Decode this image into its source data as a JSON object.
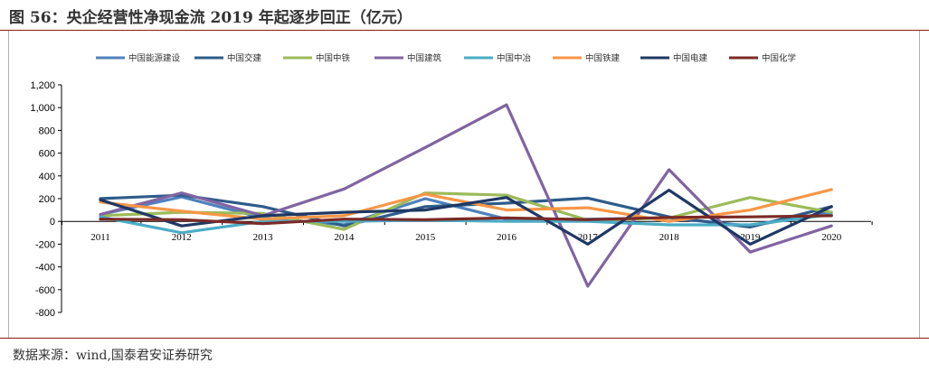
{
  "title": "图 56：央企经营性净现金流 2019 年起逐步回正（亿元）",
  "source": "数据来源：wind,国泰君安证券研究",
  "chart_data": {
    "type": "line",
    "title": "",
    "xlabel": "",
    "ylabel": "",
    "x": [
      "2011",
      "2012",
      "2013",
      "2014",
      "2015",
      "2016",
      "2017",
      "2018",
      "2019",
      "2020"
    ],
    "ylim": [
      -800,
      1200
    ],
    "ytick_step": 200,
    "ytick_labels": [
      "-800",
      "-600",
      "-400",
      "-200",
      "0",
      "200",
      "400",
      "600",
      "800",
      "1,000",
      "1,200"
    ],
    "legend_position": "top",
    "grid": false,
    "series": [
      {
        "name": "中国能源建设",
        "color": "#4f81bd",
        "values": [
          60,
          215,
          30,
          -30,
          200,
          20,
          20,
          30,
          -40,
          80
        ]
      },
      {
        "name": "中国交建",
        "color": "#2e5c8a",
        "values": [
          200,
          230,
          130,
          -40,
          130,
          160,
          205,
          40,
          -50,
          130
        ]
      },
      {
        "name": "中国中铁",
        "color": "#9bbb59",
        "values": [
          50,
          80,
          70,
          -70,
          250,
          230,
          10,
          30,
          210,
          80
        ]
      },
      {
        "name": "中国建筑",
        "color": "#8064a2",
        "values": [
          60,
          250,
          50,
          285,
          650,
          1025,
          -570,
          455,
          -270,
          -40
        ]
      },
      {
        "name": "中国中冶",
        "color": "#4bacc6",
        "values": [
          40,
          -100,
          0,
          0,
          10,
          0,
          0,
          -30,
          -30,
          60
        ]
      },
      {
        "name": "中国铁建",
        "color": "#f79646",
        "values": [
          170,
          90,
          20,
          50,
          240,
          100,
          120,
          0,
          100,
          280
        ]
      },
      {
        "name": "中国电建",
        "color": "#1f3864",
        "values": [
          190,
          -40,
          50,
          80,
          100,
          210,
          -200,
          275,
          -200,
          130
        ]
      },
      {
        "name": "中国化学",
        "color": "#7b2a26",
        "values": [
          20,
          15,
          -20,
          20,
          15,
          30,
          15,
          35,
          40,
          50
        ]
      }
    ]
  }
}
